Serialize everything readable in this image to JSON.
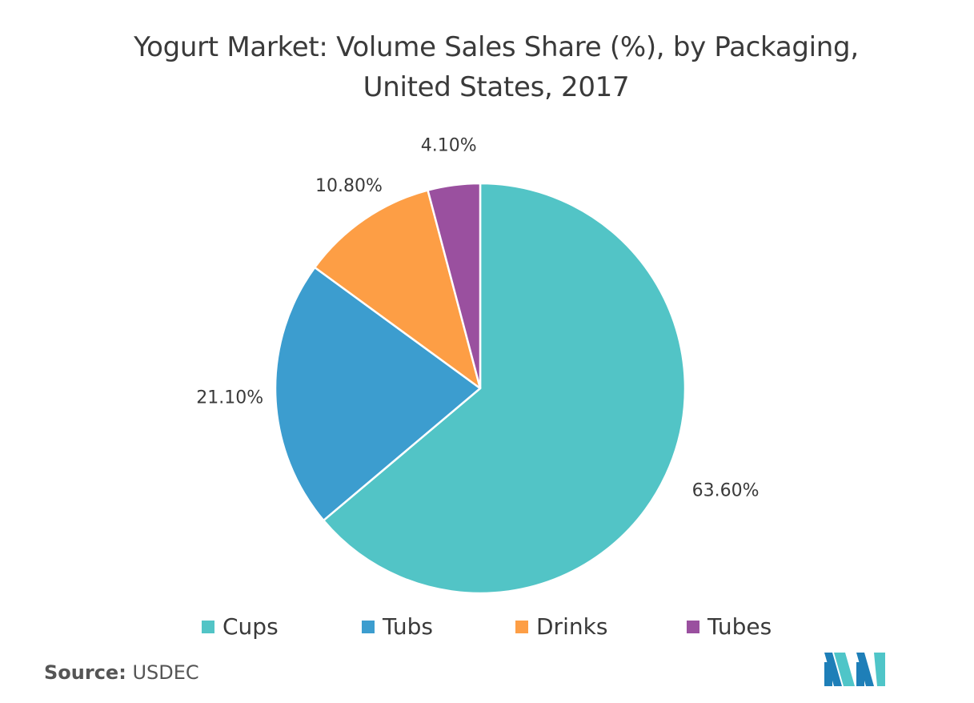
{
  "title_lines": [
    "Yogurt Market: Volume Sales Share (%), by Packaging,",
    "United States, 2017"
  ],
  "chart_data": {
    "type": "pie",
    "title": "Yogurt Market: Volume Sales Share (%), by Packaging, United States, 2017",
    "categories": [
      "Cups",
      "Tubs",
      "Drinks",
      "Tubes"
    ],
    "values": [
      63.6,
      21.1,
      10.8,
      4.1
    ],
    "data_labels": [
      "63.60%",
      "21.10%",
      "10.80%",
      "4.10%"
    ],
    "colors": [
      "#52c4c6",
      "#3c9dcf",
      "#fd9e45",
      "#9a509f"
    ],
    "start": "12 o'clock, clockwise",
    "legend_placement": "bottom"
  },
  "legend": [
    {
      "label": "Cups",
      "color": "#52c4c6"
    },
    {
      "label": "Tubs",
      "color": "#3c9dcf"
    },
    {
      "label": "Drinks",
      "color": "#fd9e45"
    },
    {
      "label": "Tubes",
      "color": "#9a509f"
    }
  ],
  "source": {
    "prefix": "Source:",
    "text": "USDEC"
  },
  "logo_colors": [
    "#1e7fb8",
    "#4fc5c8"
  ]
}
